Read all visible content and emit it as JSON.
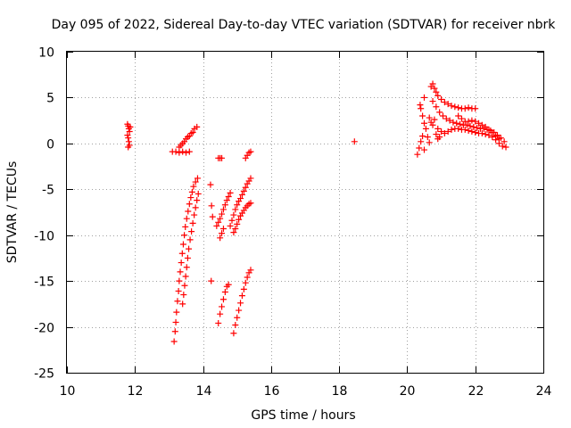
{
  "chart_data": {
    "type": "scatter",
    "title": "Day 095 of 2022, Sidereal Day-to-day VTEC variation (SDTVAR) for receiver nbrk",
    "xlabel": "GPS time / hours",
    "ylabel": "SDTVAR / TECUs",
    "xlim": [
      10,
      24
    ],
    "ylim": [
      -25,
      10
    ],
    "xticks": [
      10,
      12,
      14,
      16,
      18,
      20,
      22,
      24
    ],
    "yticks": [
      -25,
      -20,
      -15,
      -10,
      -5,
      0,
      5,
      10
    ],
    "grid": true,
    "marker": "+",
    "color": "#ff0000",
    "series": [
      {
        "name": "s1",
        "points": [
          [
            11.78,
            2.1
          ],
          [
            11.8,
            1.9
          ],
          [
            11.82,
            1.6
          ],
          [
            11.84,
            1.3
          ],
          [
            11.8,
            0.6
          ],
          [
            11.82,
            0.2
          ],
          [
            11.84,
            -0.2
          ],
          [
            11.78,
            0.9
          ],
          [
            11.86,
            1.8
          ],
          [
            11.8,
            -0.4
          ]
        ]
      },
      {
        "name": "s2",
        "points": [
          [
            13.1,
            -0.9
          ],
          [
            13.2,
            -0.9
          ],
          [
            13.3,
            -1.0
          ],
          [
            13.4,
            -0.9
          ],
          [
            13.5,
            -1.0
          ],
          [
            13.6,
            -0.9
          ],
          [
            13.35,
            -0.2
          ],
          [
            13.45,
            0.2
          ],
          [
            13.55,
            0.7
          ],
          [
            13.65,
            1.1
          ],
          [
            13.75,
            1.6
          ],
          [
            13.82,
            1.8
          ],
          [
            13.7,
            1.2
          ],
          [
            13.6,
            0.8
          ],
          [
            13.5,
            0.5
          ],
          [
            13.4,
            0.0
          ],
          [
            13.3,
            -0.4
          ]
        ]
      },
      {
        "name": "s3",
        "points": [
          [
            13.15,
            -21.6
          ],
          [
            13.18,
            -20.5
          ],
          [
            13.2,
            -19.5
          ],
          [
            13.22,
            -18.4
          ],
          [
            13.25,
            -17.2
          ],
          [
            13.28,
            -16.1
          ],
          [
            13.3,
            -15.0
          ],
          [
            13.33,
            -14.0
          ],
          [
            13.36,
            -13.0
          ],
          [
            13.39,
            -12.0
          ],
          [
            13.42,
            -11.0
          ],
          [
            13.45,
            -10.0
          ],
          [
            13.48,
            -9.1
          ],
          [
            13.52,
            -8.2
          ],
          [
            13.56,
            -7.4
          ],
          [
            13.6,
            -6.6
          ],
          [
            13.64,
            -5.9
          ],
          [
            13.68,
            -5.3
          ],
          [
            13.72,
            -4.7
          ],
          [
            13.78,
            -4.2
          ],
          [
            13.84,
            -3.8
          ]
        ]
      },
      {
        "name": "s4",
        "points": [
          [
            13.4,
            -17.5
          ],
          [
            13.43,
            -16.5
          ],
          [
            13.46,
            -15.5
          ],
          [
            13.49,
            -14.5
          ],
          [
            13.52,
            -13.5
          ],
          [
            13.55,
            -12.5
          ],
          [
            13.58,
            -11.5
          ],
          [
            13.62,
            -10.5
          ],
          [
            13.66,
            -9.6
          ],
          [
            13.7,
            -8.7
          ],
          [
            13.74,
            -7.8
          ],
          [
            13.78,
            -7.0
          ],
          [
            13.82,
            -6.2
          ],
          [
            13.86,
            -5.5
          ]
        ]
      },
      {
        "name": "s5",
        "points": [
          [
            14.22,
            -4.5
          ],
          [
            14.25,
            -6.8
          ],
          [
            14.28,
            -8.0
          ],
          [
            14.24,
            -15.0
          ],
          [
            14.45,
            -1.6
          ],
          [
            14.5,
            -1.6
          ],
          [
            14.55,
            -1.6
          ]
        ]
      },
      {
        "name": "s6",
        "points": [
          [
            14.4,
            -9.0
          ],
          [
            14.45,
            -8.6
          ],
          [
            14.5,
            -8.2
          ],
          [
            14.55,
            -7.7
          ],
          [
            14.6,
            -7.2
          ],
          [
            14.65,
            -6.7
          ],
          [
            14.7,
            -6.2
          ],
          [
            14.75,
            -5.8
          ],
          [
            14.8,
            -5.4
          ],
          [
            14.5,
            -10.3
          ],
          [
            14.55,
            -9.8
          ],
          [
            14.6,
            -9.3
          ]
        ]
      },
      {
        "name": "s7",
        "points": [
          [
            14.45,
            -19.6
          ],
          [
            14.5,
            -18.6
          ],
          [
            14.55,
            -17.8
          ],
          [
            14.6,
            -17.0
          ],
          [
            14.65,
            -16.2
          ],
          [
            14.7,
            -15.6
          ],
          [
            14.75,
            -15.4
          ]
        ]
      },
      {
        "name": "s8",
        "points": [
          [
            14.8,
            -9.0
          ],
          [
            14.85,
            -8.4
          ],
          [
            14.9,
            -7.8
          ],
          [
            14.95,
            -7.2
          ],
          [
            15.0,
            -6.7
          ],
          [
            15.05,
            -6.3
          ],
          [
            15.1,
            -6.0
          ],
          [
            15.15,
            -5.6
          ],
          [
            15.2,
            -5.2
          ],
          [
            15.25,
            -4.8
          ],
          [
            15.3,
            -4.4
          ],
          [
            15.35,
            -4.1
          ],
          [
            15.4,
            -3.8
          ],
          [
            14.9,
            -9.7
          ],
          [
            14.95,
            -9.3
          ],
          [
            15.0,
            -8.8
          ],
          [
            15.05,
            -8.3
          ],
          [
            15.1,
            -7.9
          ],
          [
            15.15,
            -7.6
          ],
          [
            15.2,
            -7.3
          ],
          [
            15.25,
            -7.0
          ],
          [
            15.3,
            -6.8
          ],
          [
            15.35,
            -6.6
          ],
          [
            15.4,
            -6.5
          ]
        ]
      },
      {
        "name": "s9",
        "points": [
          [
            15.25,
            -1.6
          ],
          [
            15.3,
            -1.3
          ],
          [
            15.35,
            -1.0
          ],
          [
            15.4,
            -0.9
          ]
        ]
      },
      {
        "name": "s10",
        "points": [
          [
            14.9,
            -20.7
          ],
          [
            14.95,
            -19.8
          ],
          [
            15.0,
            -19.0
          ],
          [
            15.05,
            -18.2
          ],
          [
            15.1,
            -17.4
          ],
          [
            15.15,
            -16.6
          ],
          [
            15.2,
            -15.9
          ],
          [
            15.25,
            -15.2
          ],
          [
            15.3,
            -14.6
          ],
          [
            15.35,
            -14.1
          ],
          [
            15.4,
            -13.8
          ]
        ]
      },
      {
        "name": "s11",
        "points": [
          [
            18.45,
            0.2
          ]
        ]
      },
      {
        "name": "s12",
        "points": [
          [
            20.3,
            -1.2
          ],
          [
            20.35,
            -0.5
          ],
          [
            20.4,
            0.2
          ],
          [
            20.45,
            0.8
          ],
          [
            20.5,
            -0.7
          ],
          [
            20.4,
            3.8
          ],
          [
            20.45,
            3.0
          ],
          [
            20.5,
            2.2
          ],
          [
            20.55,
            1.6
          ],
          [
            20.6,
            0.7
          ],
          [
            20.65,
            0.1
          ],
          [
            20.38,
            4.2
          ],
          [
            20.5,
            5.0
          ]
        ]
      },
      {
        "name": "s13",
        "points": [
          [
            20.7,
            6.2
          ],
          [
            20.75,
            6.5
          ],
          [
            20.8,
            6.0
          ],
          [
            20.85,
            5.6
          ],
          [
            20.9,
            5.2
          ],
          [
            21.0,
            4.8
          ],
          [
            21.1,
            4.5
          ],
          [
            21.2,
            4.3
          ],
          [
            21.3,
            4.1
          ],
          [
            21.4,
            4.0
          ],
          [
            21.5,
            3.9
          ],
          [
            21.6,
            3.8
          ],
          [
            21.7,
            3.8
          ],
          [
            21.8,
            3.9
          ],
          [
            21.9,
            3.8
          ],
          [
            22.0,
            3.8
          ]
        ]
      },
      {
        "name": "s14",
        "points": [
          [
            20.75,
            4.6
          ],
          [
            20.85,
            4.0
          ],
          [
            20.95,
            3.4
          ],
          [
            21.05,
            3.0
          ],
          [
            21.15,
            2.7
          ],
          [
            21.25,
            2.5
          ],
          [
            21.35,
            2.3
          ],
          [
            21.45,
            2.2
          ],
          [
            21.55,
            2.1
          ],
          [
            21.65,
            2.0
          ],
          [
            21.75,
            2.0
          ],
          [
            21.85,
            1.9
          ],
          [
            21.95,
            1.8
          ],
          [
            22.05,
            1.7
          ],
          [
            22.15,
            1.6
          ],
          [
            22.25,
            1.6
          ],
          [
            22.35,
            1.5
          ],
          [
            22.45,
            1.4
          ],
          [
            22.55,
            1.2
          ],
          [
            22.65,
            0.9
          ],
          [
            22.75,
            0.6
          ],
          [
            22.85,
            0.2
          ]
        ]
      },
      {
        "name": "s15",
        "points": [
          [
            20.9,
            1.6
          ],
          [
            21.0,
            1.3
          ],
          [
            21.1,
            1.1
          ],
          [
            21.2,
            1.3
          ],
          [
            21.3,
            1.5
          ],
          [
            21.4,
            1.6
          ],
          [
            21.5,
            1.6
          ],
          [
            21.6,
            1.5
          ],
          [
            21.7,
            1.5
          ],
          [
            21.8,
            1.4
          ],
          [
            21.9,
            1.3
          ],
          [
            22.0,
            1.2
          ],
          [
            22.1,
            1.1
          ],
          [
            22.2,
            1.1
          ],
          [
            22.3,
            1.0
          ],
          [
            22.4,
            0.9
          ],
          [
            22.5,
            0.7
          ],
          [
            22.6,
            0.4
          ],
          [
            22.7,
            0.0
          ],
          [
            22.8,
            -0.3
          ],
          [
            22.9,
            -0.4
          ]
        ]
      },
      {
        "name": "s16",
        "points": [
          [
            21.5,
            3.0
          ],
          [
            21.6,
            2.7
          ],
          [
            21.7,
            2.4
          ],
          [
            21.8,
            2.4
          ],
          [
            21.9,
            2.5
          ],
          [
            22.0,
            2.4
          ],
          [
            22.1,
            2.2
          ],
          [
            22.2,
            2.0
          ],
          [
            22.3,
            1.8
          ],
          [
            22.4,
            1.5
          ],
          [
            22.5,
            1.2
          ],
          [
            22.6,
            0.8
          ],
          [
            22.7,
            0.5
          ]
        ]
      },
      {
        "name": "s17",
        "points": [
          [
            20.65,
            2.8
          ],
          [
            20.7,
            2.3
          ],
          [
            20.75,
            2.0
          ],
          [
            20.8,
            2.6
          ],
          [
            20.85,
            1.0
          ],
          [
            20.9,
            0.5
          ],
          [
            20.95,
            0.7
          ]
        ]
      }
    ]
  }
}
